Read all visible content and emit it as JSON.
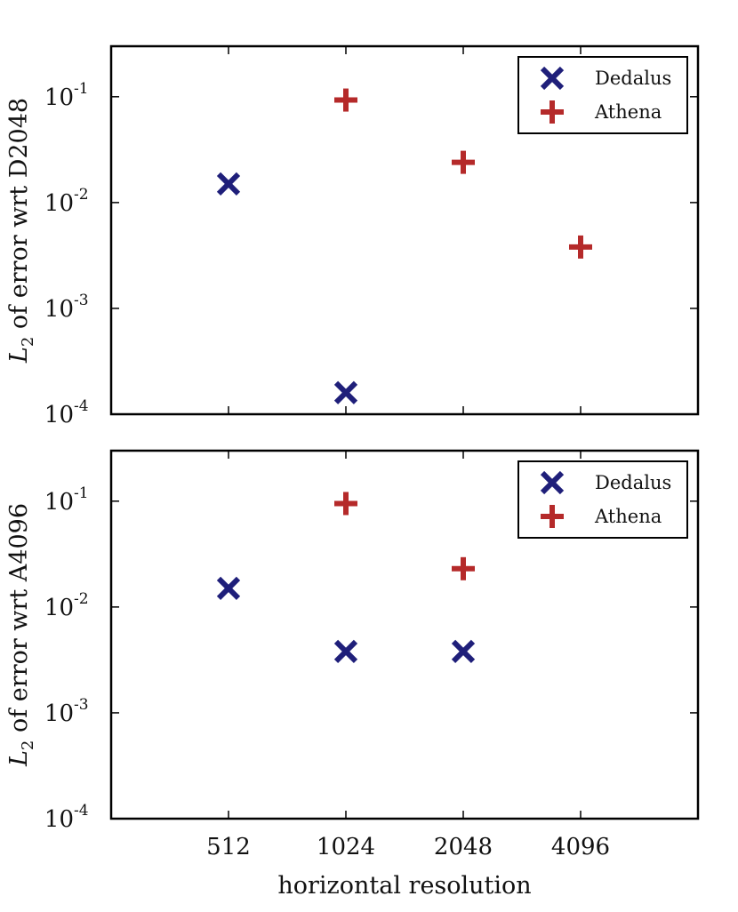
{
  "chart_data": [
    {
      "type": "scatter",
      "yscale": "log",
      "ylim": [
        0.0001,
        0.3
      ],
      "ylabel": {
        "symbol": "L",
        "subscript": "2",
        "text": " of error wrt D2048"
      },
      "legend": {
        "position": "top-right",
        "entries": [
          "Dedalus",
          "Athena"
        ]
      },
      "series": [
        {
          "name": "Dedalus",
          "marker": "x",
          "color": "#1f1f7a",
          "points": [
            {
              "x": 512,
              "y": 0.015
            },
            {
              "x": 1024,
              "y": 0.00016
            }
          ]
        },
        {
          "name": "Athena",
          "marker": "+",
          "color": "#b52a2a",
          "points": [
            {
              "x": 1024,
              "y": 0.093
            },
            {
              "x": 2048,
              "y": 0.024
            },
            {
              "x": 4096,
              "y": 0.0038
            }
          ]
        }
      ]
    },
    {
      "type": "scatter",
      "yscale": "log",
      "ylim": [
        0.0001,
        0.3
      ],
      "xlabel": "horizontal resolution",
      "ylabel": {
        "symbol": "L",
        "subscript": "2",
        "text": " of error wrt A4096"
      },
      "legend": {
        "position": "top-right",
        "entries": [
          "Dedalus",
          "Athena"
        ]
      },
      "series": [
        {
          "name": "Dedalus",
          "marker": "x",
          "color": "#1f1f7a",
          "points": [
            {
              "x": 512,
              "y": 0.015
            },
            {
              "x": 1024,
              "y": 0.0038
            },
            {
              "x": 2048,
              "y": 0.0038
            }
          ]
        },
        {
          "name": "Athena",
          "marker": "+",
          "color": "#b52a2a",
          "points": [
            {
              "x": 1024,
              "y": 0.095
            },
            {
              "x": 2048,
              "y": 0.023
            }
          ]
        }
      ]
    }
  ],
  "axes": {
    "xscale": "log2",
    "xlim": [
      256,
      8192
    ],
    "xticks": [
      512,
      1024,
      2048,
      4096
    ],
    "xtick_labels": [
      "512",
      "1024",
      "2048",
      "4096"
    ],
    "yticks": [
      {
        "value": 0.1,
        "base": "10",
        "exp": "-1"
      },
      {
        "value": 0.01,
        "base": "10",
        "exp": "-2"
      },
      {
        "value": 0.001,
        "base": "10",
        "exp": "-3"
      },
      {
        "value": 0.0001,
        "base": "10",
        "exp": "-4"
      }
    ]
  }
}
